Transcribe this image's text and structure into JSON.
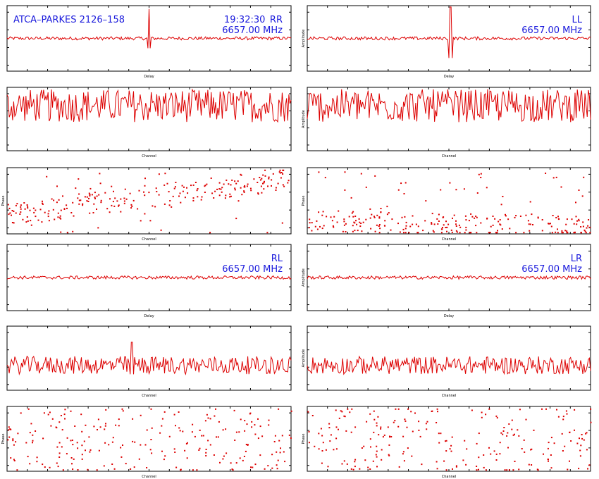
{
  "header": {
    "source": "ATCA–PARKES 2126–158",
    "time": "19:32:30",
    "frequency": "6657.00 MHz"
  },
  "colors": {
    "trace": "#dd0000",
    "annotation": "#1a1adc",
    "frame": "#000000"
  },
  "quadrants": [
    {
      "id": "RR",
      "label": "RR",
      "show_time": true,
      "show_source": true,
      "amp_ylabel": "",
      "phase_ylabel": "Phase"
    },
    {
      "id": "LL",
      "label": "LL",
      "show_time": false,
      "show_source": false,
      "amp_ylabel": "Amplitude",
      "phase_ylabel": "Phase"
    },
    {
      "id": "RL",
      "label": "RL",
      "show_time": false,
      "show_source": false,
      "amp_ylabel": "",
      "phase_ylabel": "Phase"
    },
    {
      "id": "LR",
      "label": "LR",
      "show_time": false,
      "show_source": false,
      "amp_ylabel": "Amplitude",
      "phase_ylabel": "Phase"
    }
  ],
  "chart_data": [
    {
      "type": "line",
      "panel": "RR-delay",
      "xlabel": "Delay",
      "ylabel": "",
      "noise": 0.05,
      "level": 0.5,
      "spike": {
        "x": 0.5,
        "height": 0.95,
        "depth": 0.15
      }
    },
    {
      "type": "line",
      "panel": "RR-channel",
      "xlabel": "Channel",
      "ylabel": "",
      "noise": 0.65,
      "level": 0.45
    },
    {
      "type": "scatter",
      "panel": "RR-phase",
      "xlabel": "Channel",
      "ylabel": "Phase",
      "points": 260,
      "band": [
        0.3,
        0.85,
        0.15,
        0.35
      ]
    },
    {
      "type": "line",
      "panel": "LL-delay",
      "xlabel": "Delay",
      "ylabel": "Amplitude",
      "noise": 0.05,
      "level": 0.5,
      "spike": {
        "x": 0.505,
        "height": 1.0,
        "depth": 0.3
      }
    },
    {
      "type": "line",
      "panel": "LL-channel",
      "xlabel": "Channel",
      "ylabel": "Amplitude",
      "noise": 0.65,
      "level": 0.45
    },
    {
      "type": "scatter",
      "panel": "LL-phase",
      "xlabel": "Channel",
      "ylabel": "Phase",
      "points": 260,
      "band": [
        0.2,
        0.1,
        0.6,
        0.95
      ]
    },
    {
      "type": "line",
      "panel": "RL-delay",
      "xlabel": "Delay",
      "ylabel": "",
      "noise": 0.05,
      "level": 0.5
    },
    {
      "type": "line",
      "panel": "RL-channel",
      "xlabel": "Channel",
      "ylabel": "",
      "noise": 0.35,
      "level": 0.25,
      "spike": {
        "x": 0.44,
        "height": 0.75,
        "depth": 0.0
      }
    },
    {
      "type": "scatter",
      "panel": "RL-phase",
      "xlabel": "Channel",
      "ylabel": "Phase",
      "points": 230,
      "uniform": true
    },
    {
      "type": "line",
      "panel": "LR-delay",
      "xlabel": "Delay",
      "ylabel": "Amplitude",
      "noise": 0.05,
      "level": 0.5
    },
    {
      "type": "line",
      "panel": "LR-channel",
      "xlabel": "Channel",
      "ylabel": "Amplitude",
      "noise": 0.35,
      "level": 0.25
    },
    {
      "type": "scatter",
      "panel": "LR-phase",
      "xlabel": "Channel",
      "ylabel": "Phase",
      "points": 230,
      "uniform": true
    }
  ]
}
